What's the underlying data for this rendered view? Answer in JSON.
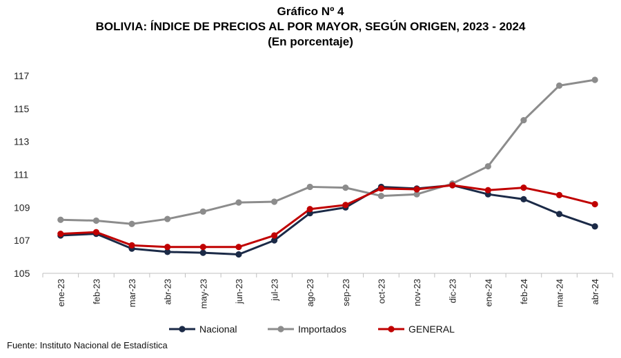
{
  "title": "Gráfico Nº 4",
  "subtitle": "BOLIVIA: ÍNDICE DE PRECIOS AL POR MAYOR, SEGÚN ORIGEN, 2023 - 2024",
  "unit_note": "(En porcentaje)",
  "source": "Fuente: Instituto Nacional de Estadística",
  "chart_data": {
    "type": "line",
    "categories": [
      "ene-23",
      "feb-23",
      "mar-23",
      "abr-23",
      "may-23",
      "jun-23",
      "jul-23",
      "ago-23",
      "sep-23",
      "oct-23",
      "nov-23",
      "dic-23",
      "ene-24",
      "feb-24",
      "mar-24",
      "abr-24"
    ],
    "ylim": [
      105,
      117
    ],
    "yticks": [
      105,
      107,
      109,
      111,
      113,
      115,
      117
    ],
    "grid": false,
    "legend_position": "bottom",
    "series": [
      {
        "name": "Nacional",
        "color": "#1b2a47",
        "values": [
          107.3,
          107.4,
          106.5,
          106.3,
          106.25,
          106.15,
          107.0,
          108.65,
          109.0,
          110.25,
          110.15,
          110.35,
          109.8,
          109.5,
          108.6,
          107.85
        ]
      },
      {
        "name": "Importados",
        "color": "#8c8c8c",
        "values": [
          108.25,
          108.2,
          108.0,
          108.3,
          108.75,
          109.3,
          109.35,
          110.25,
          110.2,
          109.7,
          109.8,
          110.45,
          111.5,
          114.3,
          116.4,
          116.75
        ]
      },
      {
        "name": "GENERAL",
        "color": "#c00000",
        "values": [
          107.4,
          107.5,
          106.7,
          106.6,
          106.6,
          106.6,
          107.3,
          108.9,
          109.15,
          110.15,
          110.1,
          110.35,
          110.05,
          110.2,
          109.75,
          109.2
        ]
      }
    ]
  }
}
